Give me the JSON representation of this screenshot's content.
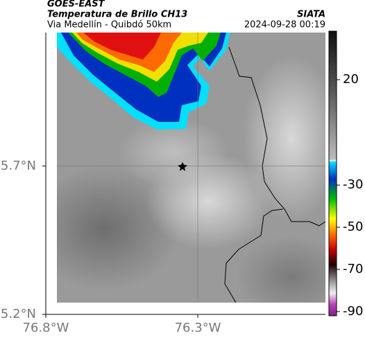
{
  "header": {
    "source": "GOES-EAST",
    "title": "Temperatura de Brillo CH13",
    "subtitle": "Via Medellín - Quibdó 50km",
    "brand": "SIATA",
    "timestamp": "2024-09-28 00:19"
  },
  "map": {
    "xlim": [
      -76.8,
      -75.88
    ],
    "ylim": [
      5.2,
      6.15
    ],
    "xticks": [
      {
        "value": -76.8,
        "label": "76.8°W"
      },
      {
        "value": -76.3,
        "label": "76.3°W"
      }
    ],
    "yticks": [
      {
        "value": 5.2,
        "label": "5.2°N"
      },
      {
        "value": 5.7,
        "label": "5.7°N"
      }
    ],
    "grid": true
  },
  "colorbar": {
    "lim": [
      -92,
      43
    ],
    "ticks": [
      20,
      -30,
      -50,
      -70,
      -90
    ]
  }
}
